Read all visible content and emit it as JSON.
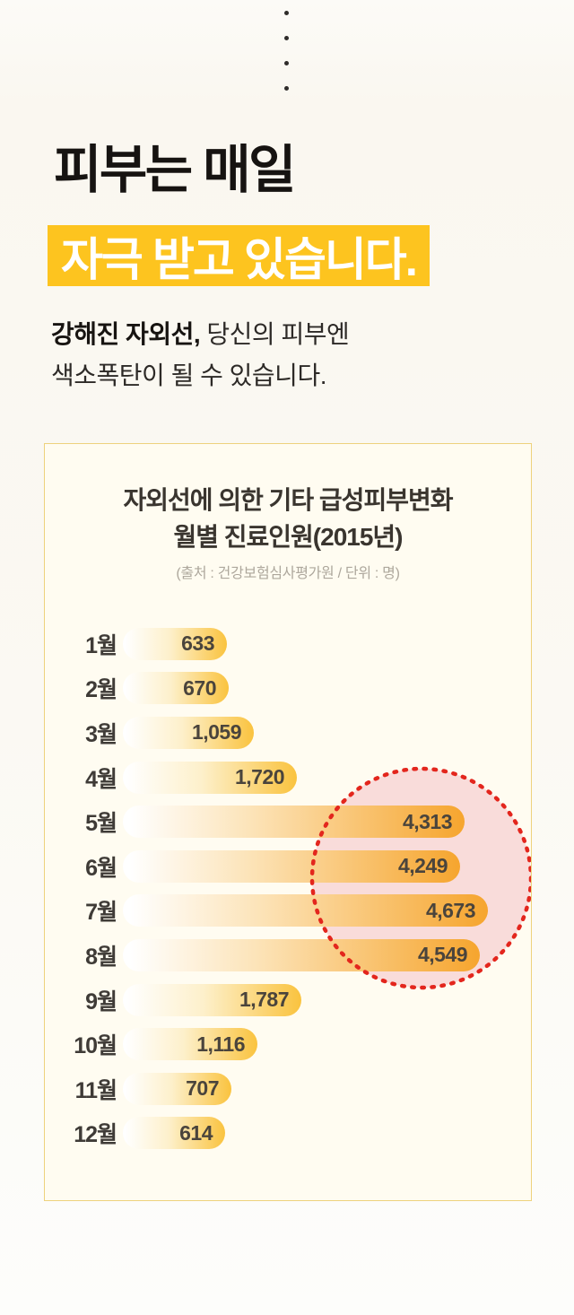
{
  "decoration": {
    "dots_count": 4
  },
  "hero": {
    "title_line1": "피부는 매일",
    "title_line2": "자극 받고 있습니다.",
    "highlight_color": "#fdc41f",
    "subtitle_bold": "강해진 자외선,",
    "subtitle_rest": " 당신의 피부엔",
    "subtitle_line2": "색소폭탄이 될 수 있습니다."
  },
  "card": {
    "title_line1": "자외선에 의한 기타 급성피부변화",
    "title_line2": "월별 진료인원(2015년)",
    "source": "(출처 : 건강보험심사평가원 / 단위 : 명)"
  },
  "chart_data": {
    "type": "bar",
    "orientation": "horizontal",
    "title": "자외선에 의한 기타 급성피부변화 월별 진료인원(2015년)",
    "source": "(출처 : 건강보험심사평가원 / 단위 : 명)",
    "unit": "명",
    "categories": [
      "1월",
      "2월",
      "3월",
      "4월",
      "5월",
      "6월",
      "7월",
      "8월",
      "9월",
      "10월",
      "11월",
      "12월"
    ],
    "values": [
      633,
      670,
      1059,
      1720,
      4313,
      4249,
      4673,
      4549,
      1787,
      1116,
      707,
      614
    ],
    "value_labels": [
      "633",
      "670",
      "1,059",
      "1,720",
      "4,313",
      "4,249",
      "4,673",
      "4,549",
      "1,787",
      "1,116",
      "707",
      "614"
    ],
    "xlim": [
      0,
      4673
    ],
    "grid": false,
    "legend": false,
    "highlighted_categories": [
      "5월",
      "6월",
      "7월",
      "8월"
    ],
    "annotation": "red dotted circle emphasizing May–August peak",
    "colors": {
      "bar_start": "#ffffff",
      "bar_normal_end": "#fac33f",
      "bar_highlight_end": "#f6a52e",
      "circle_stroke": "#e3261d",
      "circle_fill": "#f9dcda"
    }
  }
}
